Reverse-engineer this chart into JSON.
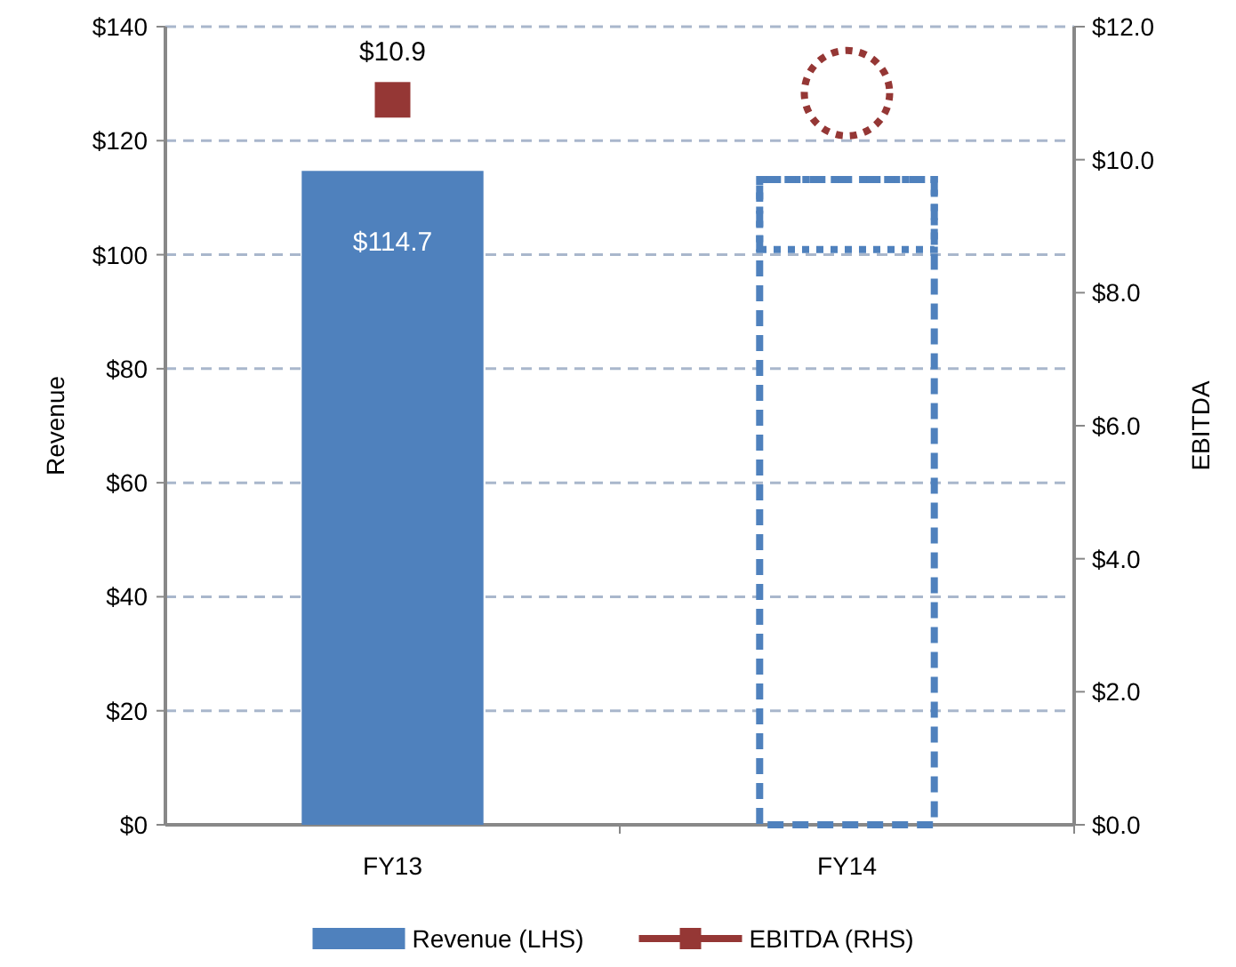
{
  "chart_data": {
    "type": "bar",
    "ylabel": "Revenue",
    "y2label": "EBITDA",
    "categories": [
      "FY13",
      "FY14"
    ],
    "ylim": [
      0,
      140
    ],
    "yticks": [
      {
        "value": 0,
        "label": "$0"
      },
      {
        "value": 20,
        "label": "$20"
      },
      {
        "value": 40,
        "label": "$40"
      },
      {
        "value": 60,
        "label": "$60"
      },
      {
        "value": 80,
        "label": "$80"
      },
      {
        "value": 100,
        "label": "$100"
      },
      {
        "value": 120,
        "label": "$120"
      },
      {
        "value": 140,
        "label": "$140"
      }
    ],
    "y2lim": [
      0,
      12
    ],
    "y2ticks": [
      {
        "value": 0,
        "label": "$0.0"
      },
      {
        "value": 2,
        "label": "$2.0"
      },
      {
        "value": 4,
        "label": "$4.0"
      },
      {
        "value": 6,
        "label": "$6.0"
      },
      {
        "value": 8,
        "label": "$8.0"
      },
      {
        "value": 10,
        "label": "$10.0"
      },
      {
        "value": 12,
        "label": "$12.0"
      }
    ],
    "grid": "y",
    "legend": "bottom",
    "series": [
      {
        "name": "Revenue (LHS)",
        "color": "#4f81bd",
        "values": [
          114.7,
          null
        ],
        "value_labels": [
          "$114.7",
          null
        ]
      },
      {
        "color": "#4f81bd",
        "line_style": "dashed",
        "values": [
          null,
          113.2
        ]
      },
      {
        "color": "#4f81bd",
        "line_style": "dotted",
        "base": [
          null,
          100.9
        ],
        "values": [
          null,
          12.3
        ]
      },
      {
        "name": "EBITDA (RHS)",
        "type": "line",
        "axis": "y2",
        "color": "#953735",
        "marker": "square",
        "values": [
          10.9,
          null
        ],
        "value_labels": [
          "$10.9",
          null
        ]
      },
      {
        "type": "scatter",
        "axis": "y2",
        "color": "#953735",
        "marker": "circle",
        "line_style": "dotted",
        "values": [
          null,
          11.0
        ]
      }
    ]
  }
}
